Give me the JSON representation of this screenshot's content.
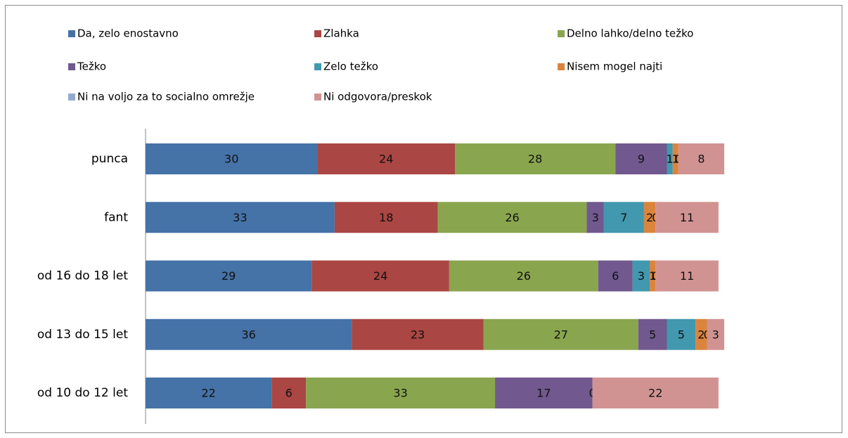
{
  "chart_data": {
    "type": "stacked_bar_horizontal",
    "categories": [
      "punca",
      "fant",
      "od 16 do 18 let",
      "od 13 do 15 let",
      "od 10 do 12 let"
    ],
    "xlim": [
      0,
      101
    ],
    "series": [
      {
        "name": "Da, zelo enostavno",
        "color": "#4572a7",
        "values": [
          30,
          33,
          29,
          36,
          22
        ]
      },
      {
        "name": "Zlahka",
        "color": "#aa4643",
        "values": [
          24,
          18,
          24,
          23,
          6
        ]
      },
      {
        "name": "Delno lahko/delno  težko",
        "color": "#89a54e",
        "values": [
          28,
          26,
          26,
          27,
          33
        ]
      },
      {
        "name": "Težko",
        "color": "#71588f",
        "values": [
          9,
          3,
          6,
          5,
          17
        ]
      },
      {
        "name": "Zelo težko",
        "color": "#4198af",
        "values": [
          1,
          7,
          3,
          5,
          0
        ]
      },
      {
        "name": "Nisem mogel najti",
        "color": "#db843d",
        "values": [
          1,
          2,
          1,
          2,
          null
        ]
      },
      {
        "name": "Ni na voljo za to socialno omrežje",
        "color": "#93a9cf",
        "values": [
          0,
          0,
          0,
          0,
          null
        ]
      },
      {
        "name": "Ni odgovora/preskok",
        "color": "#d19392",
        "values": [
          8,
          11,
          11,
          3,
          22
        ]
      }
    ]
  }
}
